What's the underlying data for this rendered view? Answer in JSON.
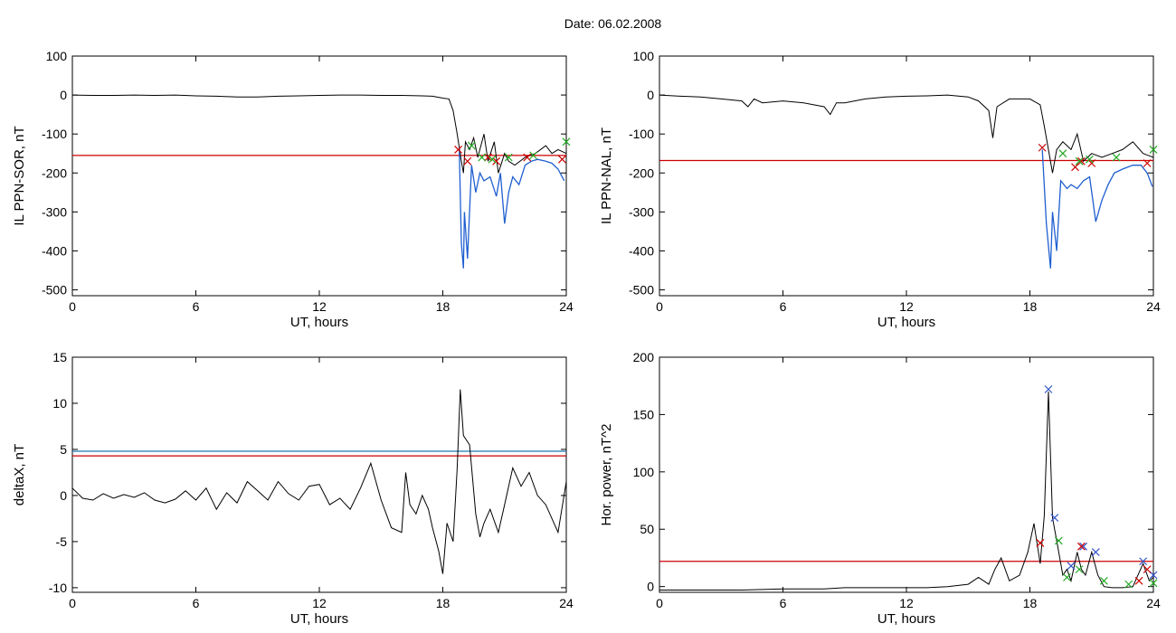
{
  "page": {
    "title": "Date:  06.02.2008"
  },
  "colors": {
    "trace": "#000000",
    "threshold_red": "#cc0000",
    "threshold_blue": "#1f77b4",
    "overlay_blue": "#1f5fd0",
    "marker_red": "#cc0000",
    "marker_green": "#22aa22",
    "marker_blue": "#3355cc"
  },
  "chart_data": [
    {
      "id": "il-sor",
      "type": "line",
      "xlabel": "UT, hours",
      "ylabel": "IL PPN-SOR, nT",
      "xlim": [
        0,
        24
      ],
      "ylim": [
        -515,
        100
      ],
      "xticks": [
        0,
        6,
        12,
        18,
        24
      ],
      "yticks": [
        100,
        0,
        -100,
        -200,
        -300,
        -400,
        -500
      ],
      "series": [
        {
          "values": [
            [
              0,
              0
            ],
            [
              1,
              -1
            ],
            [
              2,
              -1
            ],
            [
              3,
              0
            ],
            [
              4,
              -1
            ],
            [
              5,
              0
            ],
            [
              6,
              -2
            ],
            [
              7,
              -3
            ],
            [
              8,
              -5
            ],
            [
              9,
              -5
            ],
            [
              10,
              -3
            ],
            [
              11,
              -2
            ],
            [
              12,
              -1
            ],
            [
              13,
              0
            ],
            [
              14,
              0
            ],
            [
              15,
              -1
            ],
            [
              16,
              -1
            ],
            [
              17,
              -2
            ],
            [
              17.5,
              -3
            ],
            [
              18,
              -8
            ],
            [
              18.3,
              -10
            ],
            [
              18.5,
              -40
            ],
            [
              18.7,
              -100
            ],
            [
              18.9,
              -170
            ],
            [
              19.0,
              -200
            ],
            [
              19.1,
              -120
            ],
            [
              19.3,
              -140
            ],
            [
              19.5,
              -110
            ],
            [
              19.7,
              -160
            ],
            [
              20.0,
              -100
            ],
            [
              20.2,
              -170
            ],
            [
              20.5,
              -120
            ],
            [
              20.7,
              -200
            ],
            [
              21.0,
              -150
            ],
            [
              21.2,
              -170
            ],
            [
              21.5,
              -180
            ],
            [
              22.0,
              -160
            ],
            [
              22.5,
              -150
            ],
            [
              23.0,
              -130
            ],
            [
              23.3,
              -150
            ],
            [
              23.6,
              -140
            ],
            [
              24.0,
              -150
            ]
          ]
        }
      ],
      "overlay": [
        [
          18.8,
          -140
        ],
        [
          18.9,
          -380
        ],
        [
          19.0,
          -445
        ],
        [
          19.05,
          -300
        ],
        [
          19.2,
          -420
        ],
        [
          19.4,
          -180
        ],
        [
          19.6,
          -250
        ],
        [
          19.8,
          -200
        ],
        [
          20.0,
          -220
        ],
        [
          20.3,
          -210
        ],
        [
          20.6,
          -260
        ],
        [
          20.8,
          -200
        ],
        [
          21.0,
          -330
        ],
        [
          21.2,
          -250
        ],
        [
          21.4,
          -210
        ],
        [
          21.7,
          -230
        ],
        [
          22.0,
          -180
        ],
        [
          22.3,
          -170
        ],
        [
          22.6,
          -165
        ],
        [
          23.0,
          -170
        ],
        [
          23.3,
          -175
        ],
        [
          23.6,
          -190
        ],
        [
          23.9,
          -220
        ]
      ],
      "thresholds": [
        {
          "y": -155,
          "color": "red"
        }
      ],
      "markers": {
        "red": [
          [
            18.75,
            -140
          ],
          [
            19.2,
            -170
          ],
          [
            20.2,
            -160
          ],
          [
            20.6,
            -170
          ],
          [
            22.1,
            -160
          ],
          [
            23.8,
            -165
          ]
        ],
        "green": [
          [
            19.4,
            -130
          ],
          [
            19.9,
            -160
          ],
          [
            20.4,
            -165
          ],
          [
            21.2,
            -160
          ],
          [
            22.4,
            -155
          ],
          [
            24.0,
            -120
          ]
        ]
      }
    },
    {
      "id": "il-nal",
      "type": "line",
      "xlabel": "UT, hours",
      "ylabel": "IL PPN-NAL, nT",
      "xlim": [
        0,
        24
      ],
      "ylim": [
        -515,
        100
      ],
      "xticks": [
        0,
        6,
        12,
        18,
        24
      ],
      "yticks": [
        100,
        0,
        -100,
        -200,
        -300,
        -400,
        -500
      ],
      "series": [
        {
          "values": [
            [
              0,
              0
            ],
            [
              1,
              -3
            ],
            [
              2,
              -5
            ],
            [
              3,
              -10
            ],
            [
              4,
              -15
            ],
            [
              4.3,
              -30
            ],
            [
              4.6,
              -10
            ],
            [
              5,
              -20
            ],
            [
              6,
              -15
            ],
            [
              7,
              -20
            ],
            [
              7.5,
              -25
            ],
            [
              8,
              -30
            ],
            [
              8.3,
              -50
            ],
            [
              8.6,
              -20
            ],
            [
              9,
              -20
            ],
            [
              10,
              -10
            ],
            [
              11,
              -5
            ],
            [
              12,
              -3
            ],
            [
              13,
              -2
            ],
            [
              14,
              0
            ],
            [
              15,
              -5
            ],
            [
              15.5,
              -15
            ],
            [
              16,
              -40
            ],
            [
              16.2,
              -110
            ],
            [
              16.4,
              -30
            ],
            [
              17,
              -10
            ],
            [
              18,
              -10
            ],
            [
              18.5,
              -25
            ],
            [
              18.7,
              -80
            ],
            [
              18.9,
              -140
            ],
            [
              19.1,
              -200
            ],
            [
              19.3,
              -140
            ],
            [
              19.6,
              -120
            ],
            [
              20.0,
              -140
            ],
            [
              20.3,
              -100
            ],
            [
              20.6,
              -170
            ],
            [
              21.0,
              -150
            ],
            [
              21.5,
              -160
            ],
            [
              22.0,
              -150
            ],
            [
              22.5,
              -140
            ],
            [
              23.0,
              -120
            ],
            [
              23.5,
              -150
            ],
            [
              24.0,
              -160
            ]
          ]
        }
      ],
      "overlay": [
        [
          18.6,
          -140
        ],
        [
          18.8,
          -330
        ],
        [
          19.0,
          -445
        ],
        [
          19.1,
          -300
        ],
        [
          19.3,
          -400
        ],
        [
          19.5,
          -220
        ],
        [
          19.8,
          -240
        ],
        [
          20.0,
          -230
        ],
        [
          20.3,
          -240
        ],
        [
          20.6,
          -220
        ],
        [
          20.9,
          -210
        ],
        [
          21.2,
          -325
        ],
        [
          21.5,
          -270
        ],
        [
          21.8,
          -230
        ],
        [
          22.1,
          -200
        ],
        [
          22.5,
          -190
        ],
        [
          23.0,
          -180
        ],
        [
          23.4,
          -180
        ],
        [
          23.7,
          -200
        ],
        [
          23.95,
          -235
        ]
      ],
      "thresholds": [
        {
          "y": -168,
          "color": "red"
        }
      ],
      "markers": {
        "red": [
          [
            18.6,
            -135
          ],
          [
            20.2,
            -185
          ],
          [
            20.5,
            -170
          ],
          [
            21.0,
            -175
          ],
          [
            23.7,
            -175
          ]
        ],
        "green": [
          [
            19.6,
            -150
          ],
          [
            20.4,
            -170
          ],
          [
            20.9,
            -165
          ],
          [
            22.2,
            -160
          ],
          [
            24.0,
            -140
          ]
        ]
      }
    },
    {
      "id": "deltax",
      "type": "line",
      "xlabel": "UT, hours",
      "ylabel": "deltaX, nT",
      "xlim": [
        0,
        24
      ],
      "ylim": [
        -10.5,
        15
      ],
      "xticks": [
        0,
        6,
        12,
        18,
        24
      ],
      "yticks": [
        15,
        10,
        5,
        0,
        -5,
        -10
      ],
      "series": [
        {
          "values": [
            [
              0,
              0.8
            ],
            [
              0.5,
              -0.3
            ],
            [
              1,
              -0.5
            ],
            [
              1.5,
              0.2
            ],
            [
              2,
              -0.3
            ],
            [
              2.5,
              0.1
            ],
            [
              3,
              -0.2
            ],
            [
              3.5,
              0.3
            ],
            [
              4,
              -0.5
            ],
            [
              4.5,
              -0.8
            ],
            [
              5,
              -0.4
            ],
            [
              5.5,
              0.5
            ],
            [
              6,
              -0.5
            ],
            [
              6.5,
              0.8
            ],
            [
              7,
              -1.5
            ],
            [
              7.5,
              0.3
            ],
            [
              8,
              -0.8
            ],
            [
              8.5,
              1.5
            ],
            [
              9,
              0.5
            ],
            [
              9.5,
              -0.5
            ],
            [
              10,
              1.5
            ],
            [
              10.5,
              0.2
            ],
            [
              11,
              -0.5
            ],
            [
              11.5,
              1.0
            ],
            [
              12,
              1.2
            ],
            [
              12.5,
              -1.0
            ],
            [
              13,
              -0.3
            ],
            [
              13.5,
              -1.5
            ],
            [
              14,
              0.8
            ],
            [
              14.5,
              3.5
            ],
            [
              15,
              -0.5
            ],
            [
              15.5,
              -3.5
            ],
            [
              16.0,
              -4.0
            ],
            [
              16.2,
              2.5
            ],
            [
              16.4,
              -1.0
            ],
            [
              16.7,
              -2.0
            ],
            [
              17,
              0
            ],
            [
              17.3,
              -1.5
            ],
            [
              17.5,
              -3.5
            ],
            [
              17.8,
              -6
            ],
            [
              18.0,
              -8.5
            ],
            [
              18.2,
              -3
            ],
            [
              18.5,
              -5
            ],
            [
              18.7,
              3
            ],
            [
              18.85,
              11.5
            ],
            [
              19.0,
              6.5
            ],
            [
              19.3,
              5.5
            ],
            [
              19.6,
              -2
            ],
            [
              19.8,
              -4.5
            ],
            [
              20.0,
              -3
            ],
            [
              20.3,
              -1.5
            ],
            [
              20.7,
              -4
            ],
            [
              21.0,
              -1
            ],
            [
              21.4,
              3
            ],
            [
              21.8,
              1
            ],
            [
              22.2,
              2.5
            ],
            [
              22.6,
              0
            ],
            [
              23.0,
              -1.0
            ],
            [
              23.3,
              -2.5
            ],
            [
              23.6,
              -4.0
            ],
            [
              24.0,
              1.5
            ]
          ]
        }
      ],
      "thresholds": [
        {
          "y": 4.8,
          "color": "blue"
        },
        {
          "y": 4.3,
          "color": "red"
        }
      ]
    },
    {
      "id": "hor-power",
      "type": "line",
      "xlabel": "UT, hours",
      "ylabel": "Hor. power, nT^2",
      "xlim": [
        0,
        24
      ],
      "ylim": [
        -5,
        200
      ],
      "xticks": [
        0,
        6,
        12,
        18,
        24
      ],
      "yticks": [
        200,
        150,
        100,
        50,
        0
      ],
      "series": [
        {
          "values": [
            [
              0,
              -3
            ],
            [
              2,
              -3
            ],
            [
              4,
              -3
            ],
            [
              6,
              -2
            ],
            [
              8,
              -2
            ],
            [
              9,
              -1
            ],
            [
              10,
              -1
            ],
            [
              11,
              -1
            ],
            [
              12,
              -1
            ],
            [
              13,
              -1
            ],
            [
              14,
              0
            ],
            [
              15,
              2
            ],
            [
              15.5,
              8
            ],
            [
              16,
              2
            ],
            [
              16.3,
              15
            ],
            [
              16.6,
              25
            ],
            [
              17,
              5
            ],
            [
              17.5,
              10
            ],
            [
              17.9,
              30
            ],
            [
              18.2,
              55
            ],
            [
              18.5,
              20
            ],
            [
              18.7,
              62
            ],
            [
              18.9,
              170
            ],
            [
              19.1,
              60
            ],
            [
              19.3,
              40
            ],
            [
              19.6,
              10
            ],
            [
              19.8,
              15
            ],
            [
              20.0,
              5
            ],
            [
              20.3,
              30
            ],
            [
              20.5,
              15
            ],
            [
              20.7,
              10
            ],
            [
              21.0,
              30
            ],
            [
              21.3,
              10
            ],
            [
              21.6,
              0
            ],
            [
              22.0,
              -1
            ],
            [
              22.5,
              -1
            ],
            [
              23.0,
              0
            ],
            [
              23.5,
              20
            ],
            [
              23.8,
              5
            ],
            [
              24.0,
              8
            ]
          ]
        }
      ],
      "thresholds": [
        {
          "y": 22,
          "color": "red"
        }
      ],
      "markers": {
        "blue": [
          [
            18.9,
            172
          ],
          [
            19.2,
            60
          ],
          [
            20.0,
            18
          ],
          [
            20.6,
            35
          ],
          [
            21.2,
            30
          ],
          [
            23.5,
            22
          ],
          [
            24.0,
            10
          ]
        ],
        "red": [
          [
            18.5,
            38
          ],
          [
            20.5,
            35
          ],
          [
            23.3,
            5
          ],
          [
            23.7,
            15
          ]
        ],
        "green": [
          [
            19.4,
            40
          ],
          [
            19.8,
            8
          ],
          [
            20.4,
            15
          ],
          [
            21.6,
            5
          ],
          [
            22.8,
            2
          ],
          [
            24.0,
            3
          ]
        ]
      }
    }
  ]
}
